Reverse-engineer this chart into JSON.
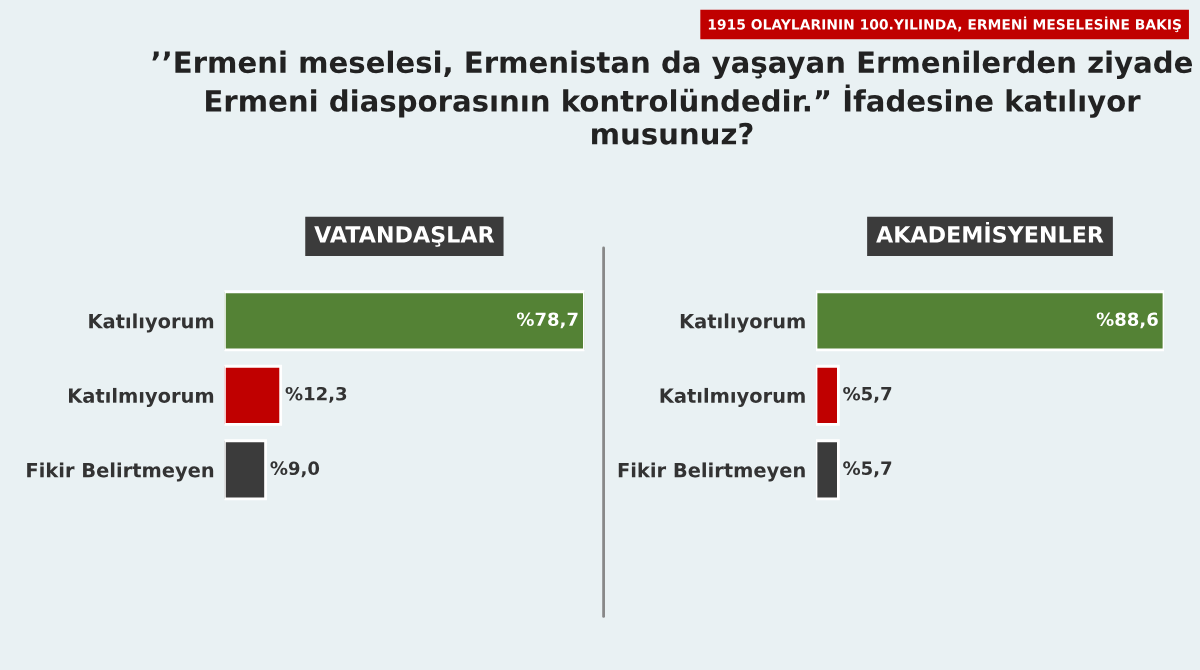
{
  "chart_data": [
    {
      "type": "bar",
      "orientation": "horizontal",
      "title": "VATANDAŞLAR",
      "annotations": [
        "1915 OLAYLARININ 100.YILINDA, ERMENİ MESELESİNE BAKIŞ",
        "’’Ermeni meselesi, Ermenistan da yaşayan Ermenilerden ziyade Ermeni diasporasının kontrolündedir.” İfadesine katılıyor musunuz?"
      ],
      "categories": [
        "Katılıyorum",
        "Katılmıyorum",
        "Fikir Belirtmeyen"
      ],
      "values": [
        78.7,
        12.3,
        9.0
      ],
      "colors": [
        "#548235",
        "#c00000",
        "#3b3b3b"
      ],
      "value_labels": [
        "%78,7",
        "%12,3",
        "%9,0"
      ],
      "grid": false,
      "legend": false
    },
    {
      "type": "bar",
      "orientation": "horizontal",
      "title": "AKADEMİSYENLER",
      "categories": [
        "Katılıyorum",
        "Katılmıyorum",
        "Fikir Belirtmeyen"
      ],
      "values": [
        88.6,
        5.7,
        5.7
      ],
      "colors": [
        "#548235",
        "#c00000",
        "#3b3b3b"
      ],
      "value_labels": [
        "%88,6",
        "%5,7",
        "%5,7"
      ],
      "grid": false,
      "legend": false
    }
  ]
}
